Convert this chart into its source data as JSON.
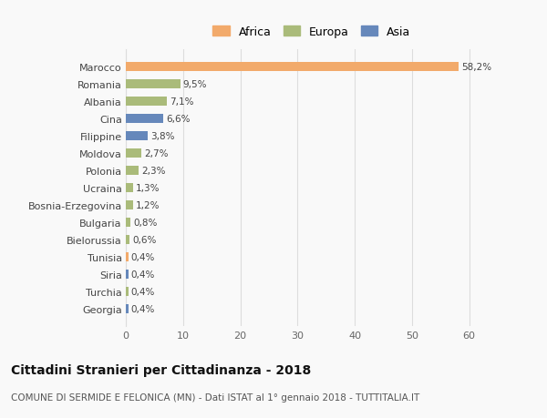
{
  "categories": [
    "Marocco",
    "Romania",
    "Albania",
    "Cina",
    "Filippine",
    "Moldova",
    "Polonia",
    "Ucraina",
    "Bosnia-Erzegovina",
    "Bulgaria",
    "Bielorussia",
    "Tunisia",
    "Siria",
    "Turchia",
    "Georgia"
  ],
  "values": [
    58.2,
    9.5,
    7.1,
    6.6,
    3.8,
    2.7,
    2.3,
    1.3,
    1.2,
    0.8,
    0.6,
    0.4,
    0.4,
    0.4,
    0.4
  ],
  "labels": [
    "58,2%",
    "9,5%",
    "7,1%",
    "6,6%",
    "3,8%",
    "2,7%",
    "2,3%",
    "1,3%",
    "1,2%",
    "0,8%",
    "0,6%",
    "0,4%",
    "0,4%",
    "0,4%",
    "0,4%"
  ],
  "continents": [
    "Africa",
    "Europa",
    "Europa",
    "Asia",
    "Asia",
    "Europa",
    "Europa",
    "Europa",
    "Europa",
    "Europa",
    "Europa",
    "Africa",
    "Asia",
    "Europa",
    "Asia"
  ],
  "colors": {
    "Africa": "#F2AA6B",
    "Europa": "#AABB7A",
    "Asia": "#6688BB"
  },
  "xlim": [
    0,
    65
  ],
  "xticks": [
    0,
    10,
    20,
    30,
    40,
    50,
    60
  ],
  "title": "Cittadini Stranieri per Cittadinanza - 2018",
  "subtitle": "COMUNE DI SERMIDE E FELONICA (MN) - Dati ISTAT al 1° gennaio 2018 - TUTTITALIA.IT",
  "background_color": "#f9f9f9",
  "grid_color": "#dddddd",
  "bar_height": 0.55,
  "label_fontsize": 7.5,
  "ytick_fontsize": 8,
  "xtick_fontsize": 8,
  "legend_fontsize": 9,
  "title_fontsize": 10,
  "subtitle_fontsize": 7.5
}
